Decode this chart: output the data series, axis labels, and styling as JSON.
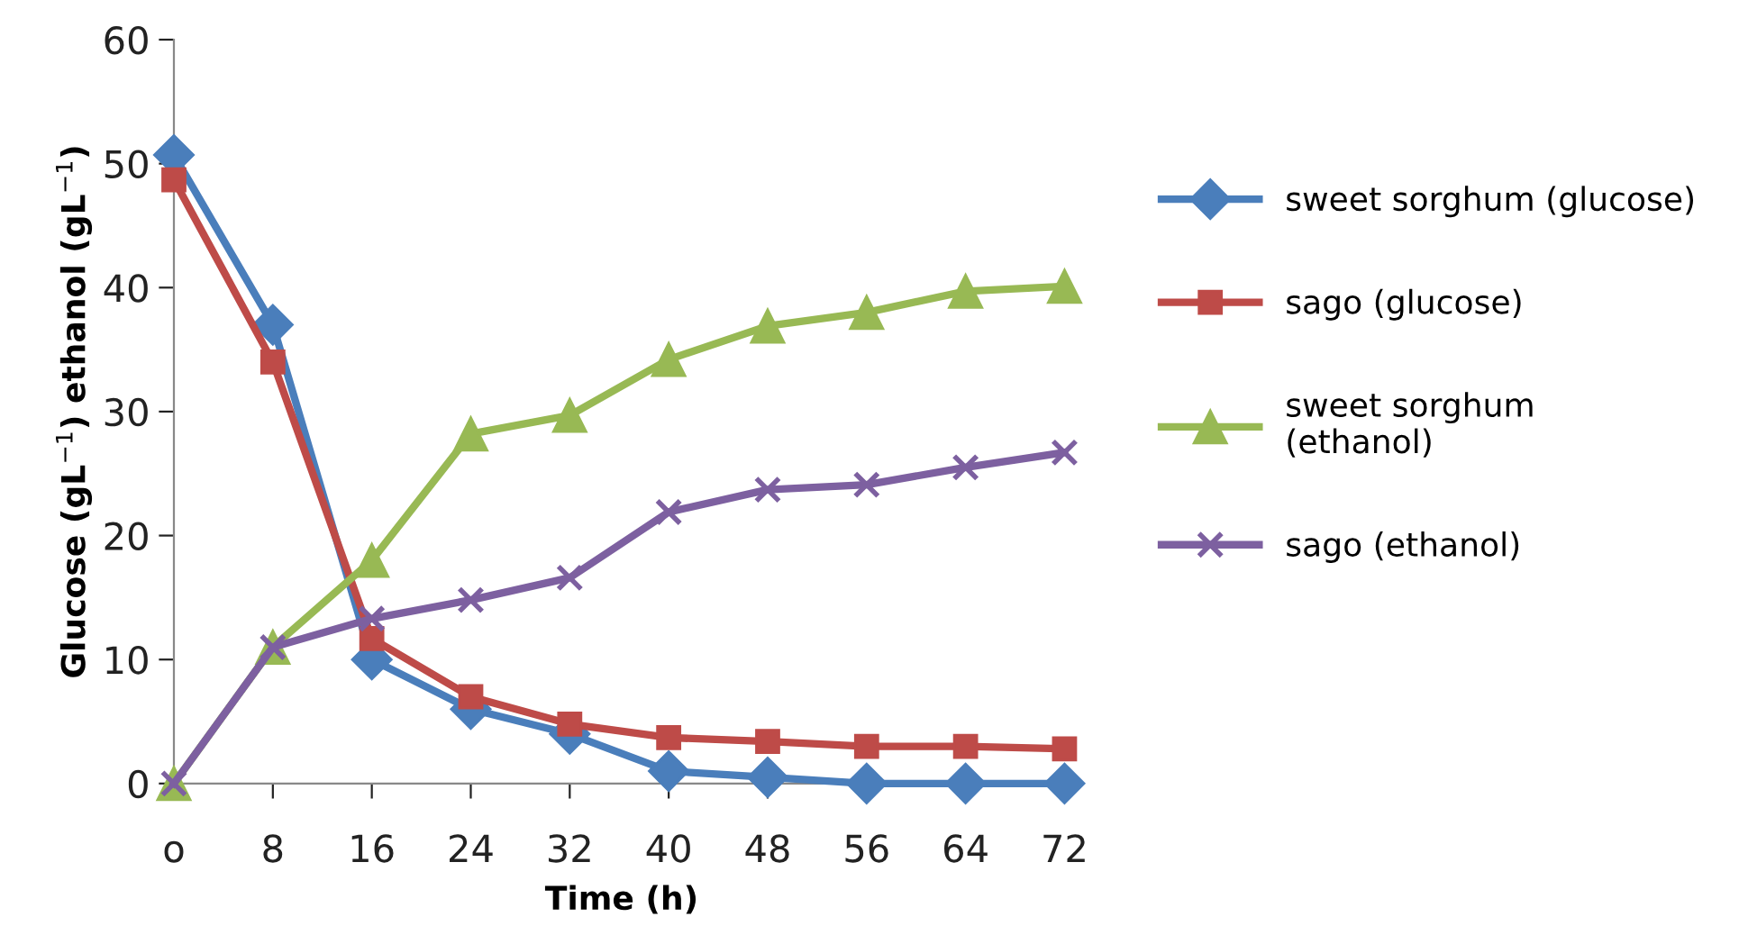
{
  "chart_data": {
    "type": "line",
    "xlabel": "Time (h)",
    "ylabel": "Glucose (gL$^{−1}$) ethanol (gL$^{−1}$)",
    "categories": [
      "o",
      "8",
      "16",
      "24",
      "32",
      "40",
      "48",
      "56",
      "64",
      "72"
    ],
    "ylim": [
      0,
      60
    ],
    "yticks": [
      0,
      10,
      20,
      30,
      40,
      50,
      60
    ],
    "grid": false,
    "legend": "right",
    "line_style": "solid",
    "series": [
      {
        "name": "sweet sorghum (glucose)",
        "color": "#4a7ebb",
        "marker": "diamond",
        "values": [
          50.7,
          37,
          10,
          6,
          4,
          1,
          0.5,
          0,
          0,
          0
        ]
      },
      {
        "name": "sago (glucose)",
        "color": "#be4b48",
        "marker": "square",
        "values": [
          48.7,
          34,
          11.7,
          7,
          4.8,
          3.7,
          3.4,
          3,
          3,
          2.8
        ]
      },
      {
        "name": "sweet sorghum\n(ethanol)",
        "color": "#98b954",
        "marker": "triangle",
        "values": [
          0,
          11,
          18,
          28.2,
          29.7,
          34.2,
          36.9,
          38,
          39.7,
          40.1
        ]
      },
      {
        "name": "sago (ethanol)",
        "color": "#7d60a0",
        "marker": "cross",
        "values": [
          0,
          11,
          13.3,
          14.8,
          16.6,
          21.9,
          23.7,
          24.1,
          25.5,
          26.7
        ]
      }
    ]
  }
}
